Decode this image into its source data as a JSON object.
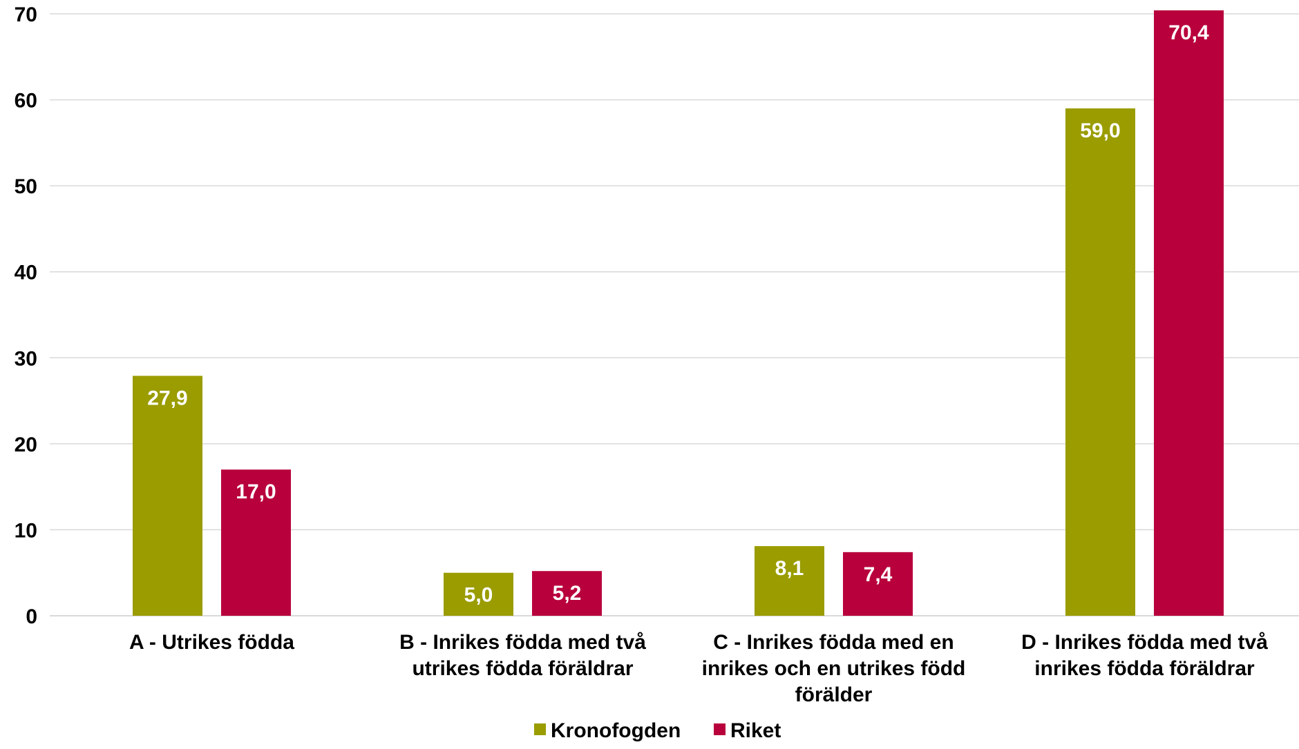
{
  "chart_data": {
    "type": "bar",
    "categories": [
      [
        "A - Utrikes födda"
      ],
      [
        "B - Inrikes födda med två",
        "utrikes födda föräldrar"
      ],
      [
        "C - Inrikes födda med en",
        "inrikes och en utrikes född",
        "förälder"
      ],
      [
        "D - Inrikes födda med två",
        "inrikes födda föräldrar"
      ]
    ],
    "series": [
      {
        "name": "Kronofogden",
        "color": "#9a9c00",
        "values": [
          27.9,
          5.0,
          8.1,
          59.0
        ],
        "labels": [
          "27,9",
          "5,0",
          "8,1",
          "59,0"
        ]
      },
      {
        "name": "Riket",
        "color": "#b8003c",
        "values": [
          17.0,
          5.2,
          7.4,
          70.4
        ],
        "labels": [
          "17,0",
          "5,2",
          "7,4",
          "70,4"
        ]
      }
    ],
    "ylim": [
      0,
      70
    ],
    "yticks": [
      0,
      10,
      20,
      30,
      40,
      50,
      60,
      70
    ],
    "ytick_labels": [
      "0",
      "10",
      "20",
      "30",
      "40",
      "50",
      "60",
      "70"
    ],
    "grid": true,
    "legend_position": "bottom",
    "title": "",
    "xlabel": "",
    "ylabel": ""
  }
}
